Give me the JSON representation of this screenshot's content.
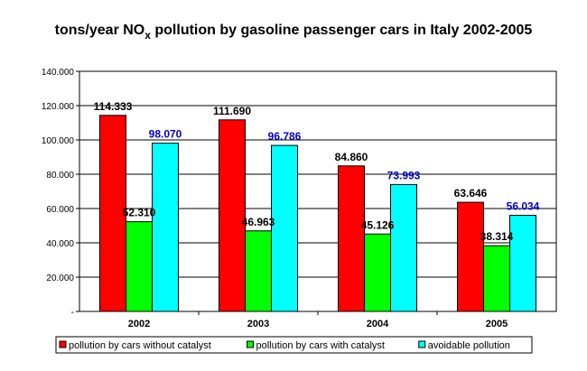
{
  "chart_data": {
    "type": "bar",
    "title": {
      "main": "tons/year NO",
      "sub": "x",
      "rest": " pollution by gasoline passenger cars in Italy 2002-2005"
    },
    "categories": [
      "2002",
      "2003",
      "2004",
      "2005"
    ],
    "series": [
      {
        "name": "pollution by cars without catalyst",
        "color": "#ff0000",
        "label_color": "#000000",
        "values": [
          114333,
          111690,
          84860,
          63646
        ],
        "labels": [
          "114.333",
          "111.690",
          "84.860",
          "63.646"
        ]
      },
      {
        "name": "pollution by cars with catalyst",
        "color": "#00ff00",
        "label_color": "#000000",
        "values": [
          52310,
          46963,
          45126,
          38314
        ],
        "labels": [
          "52.310",
          "46.963",
          "45.126",
          "38.314"
        ]
      },
      {
        "name": "avoidable pollution",
        "color": "#00ffff",
        "label_color": "#0000cc",
        "values": [
          98070,
          96786,
          73993,
          56034
        ],
        "labels": [
          "98.070",
          "96.786",
          "73.993",
          "56.034"
        ]
      }
    ],
    "ylim": [
      0,
      140000
    ],
    "y_ticks": [
      0,
      20000,
      40000,
      60000,
      80000,
      100000,
      120000,
      140000
    ],
    "y_tick_labels": [
      "-",
      "20.000",
      "40.000",
      "60.000",
      "80.000",
      "100.000",
      "120.000",
      "140.000"
    ],
    "grid": true,
    "legend_position": "bottom"
  }
}
